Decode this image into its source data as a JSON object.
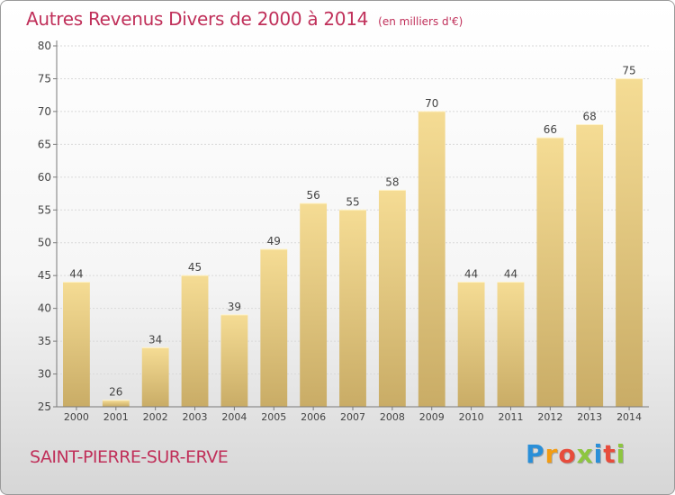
{
  "title": "Autres Revenus Divers de 2000 à 2014",
  "unit": "(en milliers d'€)",
  "town": "SAINT-PIERRE-SUR-ERVE",
  "logo": {
    "letters": [
      "P",
      "r",
      "o",
      "x",
      "i",
      "t",
      "i"
    ],
    "colors": [
      "#2a8fd8",
      "#f39c12",
      "#e74c3c",
      "#8dc63f",
      "#2a8fd8",
      "#e74c3c",
      "#8dc63f"
    ]
  },
  "colors": {
    "title": "#c0305a",
    "bar_light": "#f5dc94",
    "bar_dark": "#c9ac66",
    "axis": "#7a7a7a",
    "grid": "#d9d9d9"
  },
  "chart_data": {
    "type": "bar",
    "title": "Autres Revenus Divers de 2000 à 2014",
    "categories": [
      "2000",
      "2001",
      "2002",
      "2003",
      "2004",
      "2005",
      "2006",
      "2007",
      "2008",
      "2009",
      "2010",
      "2011",
      "2012",
      "2013",
      "2014"
    ],
    "values": [
      44,
      26,
      34,
      45,
      39,
      49,
      56,
      55,
      58,
      70,
      44,
      44,
      66,
      68,
      75
    ],
    "ylim": [
      25,
      80
    ],
    "yticks": [
      25,
      30,
      35,
      40,
      45,
      50,
      55,
      60,
      65,
      70,
      75,
      80
    ],
    "grid": true,
    "xlabel": "",
    "ylabel": ""
  }
}
